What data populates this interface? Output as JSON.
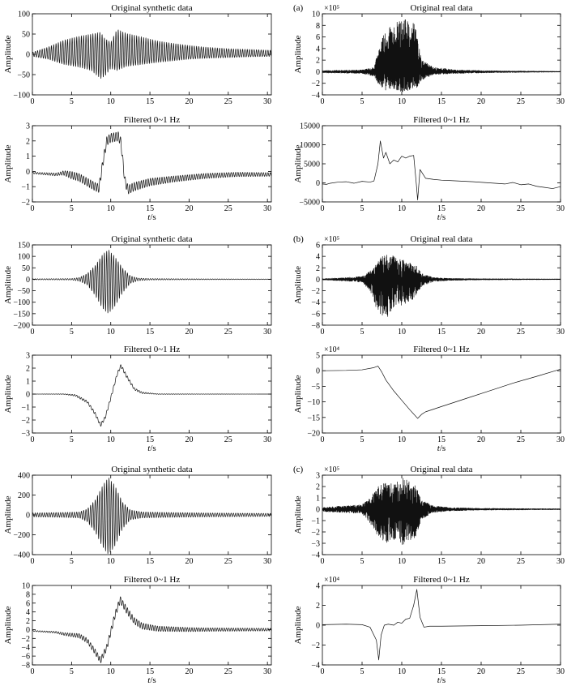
{
  "figure": {
    "panel_letters": [
      "(a)",
      "(b)",
      "(c)"
    ]
  },
  "chart_data": [
    {
      "id": "a-syn-orig",
      "type": "line",
      "title": "Original synthetic data",
      "xlabel": "",
      "ylabel": "Amplitude",
      "xlim": [
        0,
        30.5
      ],
      "ylim": [
        -100,
        100
      ],
      "yticks": [
        -100,
        -50,
        0,
        50,
        100
      ],
      "xticks": [
        0,
        5,
        10,
        15,
        20,
        25,
        30
      ],
      "exponent": "",
      "series": [
        {
          "x": [
            0,
            2,
            4,
            6,
            7.5,
            8.7,
            9.2,
            10,
            10.8,
            12,
            14,
            16,
            18,
            20,
            22,
            25,
            28,
            30.5
          ],
          "y_upper": [
            5,
            18,
            35,
            45,
            50,
            55,
            40,
            30,
            62,
            52,
            43,
            33,
            27,
            22,
            18,
            14,
            12,
            10
          ],
          "y_lower": [
            -5,
            -12,
            -25,
            -32,
            -40,
            -60,
            -55,
            -35,
            -40,
            -30,
            -25,
            -20,
            -16,
            -12,
            -10,
            -8,
            -6,
            -5
          ],
          "cycles_per_unit": 3.4
        }
      ]
    },
    {
      "id": "a-syn-filt",
      "type": "line",
      "title": "Filtered 0~1 Hz",
      "xlabel": "t/s",
      "ylabel": "Amplitude",
      "xlim": [
        0,
        30.5
      ],
      "ylim": [
        -2,
        3
      ],
      "yticks": [
        -2,
        -1,
        0,
        1,
        2,
        3
      ],
      "xticks": [
        0,
        5,
        10,
        15,
        20,
        25,
        30
      ],
      "exponent": "",
      "series": [
        {
          "x": [
            0,
            3,
            4,
            6,
            7,
            8,
            8.5,
            9,
            9.5,
            10,
            11,
            11.3,
            11.8,
            12.2,
            13,
            15,
            18,
            22,
            26,
            30.5
          ],
          "y": [
            -0.1,
            -0.2,
            -0.1,
            -0.4,
            -0.7,
            -1.0,
            -1.1,
            0.6,
            2.0,
            2.2,
            2.3,
            1.9,
            -0.6,
            -1.2,
            -1.0,
            -0.7,
            -0.5,
            -0.3,
            -0.2,
            -0.2
          ],
          "osc_x": [
            0,
            3.5,
            5,
            10,
            12,
            18,
            25,
            30.5
          ],
          "osc_amp": [
            0.05,
            0.1,
            0.25,
            0.3,
            0.3,
            0.2,
            0.15,
            0.12
          ],
          "cycles_per_unit": 3.4
        }
      ]
    },
    {
      "id": "b-syn-orig",
      "type": "line",
      "title": "Original synthetic data",
      "xlabel": "",
      "ylabel": "Amplitude",
      "xlim": [
        0,
        30.5
      ],
      "ylim": [
        -200,
        150
      ],
      "yticks": [
        -200,
        -150,
        -100,
        -50,
        0,
        50,
        100,
        150
      ],
      "xticks": [
        0,
        5,
        10,
        15,
        20,
        25,
        30
      ],
      "exponent": "",
      "series": [
        {
          "x": [
            0,
            5,
            6,
            7,
            8,
            9,
            9.7,
            10.5,
            11.5,
            12.5,
            13.5,
            15,
            20,
            30.5
          ],
          "y_upper": [
            2,
            3,
            8,
            25,
            60,
            110,
            130,
            100,
            50,
            15,
            5,
            3,
            2,
            1
          ],
          "y_lower": [
            -2,
            -3,
            -8,
            -25,
            -70,
            -130,
            -150,
            -120,
            -60,
            -18,
            -6,
            -3,
            -2,
            -1
          ],
          "cycles_per_unit": 3.4
        }
      ]
    },
    {
      "id": "b-syn-filt",
      "type": "line",
      "title": "Filtered 0~1 Hz",
      "xlabel": "t/s",
      "ylabel": "Amplitude",
      "xlim": [
        0,
        30.5
      ],
      "ylim": [
        -3,
        3
      ],
      "yticks": [
        -3,
        -2,
        -1,
        0,
        1,
        2,
        3
      ],
      "xticks": [
        0,
        5,
        10,
        15,
        20,
        25,
        30
      ],
      "exponent": "",
      "series": [
        {
          "x": [
            0,
            4,
            5.5,
            7,
            8,
            8.7,
            9.3,
            10,
            10.8,
            11.3,
            12,
            13,
            14,
            16,
            20,
            30.5
          ],
          "y": [
            0,
            0,
            -0.1,
            -0.6,
            -1.5,
            -2.4,
            -1.8,
            -0.3,
            1.5,
            2.2,
            1.4,
            0.4,
            0.1,
            0,
            0,
            0
          ],
          "osc_x": [
            0,
            4,
            6,
            9,
            12,
            14,
            16,
            30.5
          ],
          "osc_amp": [
            0,
            0.02,
            0.08,
            0.12,
            0.12,
            0.06,
            0.02,
            0
          ],
          "cycles_per_unit": 3.4
        }
      ]
    },
    {
      "id": "c-syn-orig",
      "type": "line",
      "title": "Original synthetic data",
      "xlabel": "",
      "ylabel": "Amplitude",
      "xlim": [
        0,
        30.5
      ],
      "ylim": [
        -400,
        400
      ],
      "yticks": [
        -400,
        -200,
        0,
        200,
        400
      ],
      "xticks": [
        0,
        5,
        10,
        15,
        20,
        25,
        30
      ],
      "exponent": "",
      "series": [
        {
          "x": [
            0,
            4,
            6,
            7,
            8,
            9,
            9.7,
            10.5,
            11.5,
            12.5,
            14,
            17,
            22,
            30.5
          ],
          "y_upper": [
            20,
            25,
            30,
            60,
            150,
            300,
            380,
            300,
            130,
            50,
            30,
            25,
            20,
            15
          ],
          "y_lower": [
            -20,
            -25,
            -30,
            -70,
            -170,
            -330,
            -400,
            -320,
            -140,
            -50,
            -30,
            -25,
            -20,
            -15
          ],
          "cycles_per_unit": 3.4
        }
      ]
    },
    {
      "id": "c-syn-filt",
      "type": "line",
      "title": "Filtered 0~1 Hz",
      "xlabel": "t/s",
      "ylabel": "Amplitude",
      "xlim": [
        0,
        30.5
      ],
      "ylim": [
        -8,
        10
      ],
      "yticks": [
        -8,
        -6,
        -4,
        -2,
        0,
        2,
        4,
        6,
        8,
        10
      ],
      "xticks": [
        0,
        5,
        10,
        15,
        20,
        25,
        30
      ],
      "exponent": "",
      "series": [
        {
          "x": [
            0,
            3,
            4,
            6,
            7,
            8,
            8.7,
            9.5,
            10.5,
            11.2,
            12,
            13,
            14,
            16,
            20,
            30.5
          ],
          "y": [
            -0.3,
            -0.6,
            -1.0,
            -1.4,
            -2.5,
            -5.0,
            -7.0,
            -4.0,
            3.0,
            6.8,
            4.5,
            2.0,
            0.8,
            0.2,
            0,
            0
          ],
          "osc_x": [
            0,
            3,
            6,
            9,
            12,
            16,
            22,
            30.5
          ],
          "osc_amp": [
            0.1,
            0.2,
            0.5,
            0.7,
            0.8,
            0.6,
            0.4,
            0.3
          ],
          "cycles_per_unit": 3.4
        }
      ]
    },
    {
      "id": "a-real-orig",
      "type": "line",
      "title": "Original real data",
      "xlabel": "",
      "ylabel": "Amplitude",
      "xlim": [
        0,
        30
      ],
      "ylim": [
        -4,
        10
      ],
      "yticks": [
        -4,
        -2,
        0,
        2,
        4,
        6,
        8,
        10
      ],
      "xticks": [
        0,
        5,
        10,
        15,
        20,
        25,
        30
      ],
      "exponent": "×10⁵",
      "series": [
        {
          "x": [
            0,
            5,
            6.5,
            7.2,
            8,
            9,
            10,
            11,
            11.8,
            12.5,
            14,
            17,
            22,
            30
          ],
          "y_upper": [
            0.2,
            0.3,
            0.8,
            4.5,
            7.5,
            8.2,
            9.2,
            8.8,
            8.0,
            2.0,
            0.8,
            0.3,
            0.15,
            0.05
          ],
          "y_lower": [
            -0.2,
            -0.3,
            -0.8,
            -2.5,
            -3.2,
            -3.0,
            -3.5,
            -3.2,
            -3.0,
            -1.5,
            -0.5,
            -0.3,
            -0.15,
            -0.05
          ],
          "noise": true,
          "rng_seed": 11
        }
      ]
    },
    {
      "id": "a-real-filt",
      "type": "line",
      "title": "Filtered 0~1 Hz",
      "xlabel": "t/s",
      "ylabel": "Amplitude",
      "xlim": [
        0,
        30
      ],
      "ylim": [
        -5000,
        15000
      ],
      "yticks": [
        -5000,
        0,
        5000,
        10000,
        15000
      ],
      "xticks": [
        0,
        5,
        10,
        15,
        20,
        25,
        30
      ],
      "exponent": "",
      "series": [
        {
          "x": [
            0,
            0.5,
            1,
            2,
            3,
            4,
            5,
            6,
            6.5,
            7,
            7.3,
            7.7,
            8,
            8.5,
            9,
            9.5,
            10,
            10.5,
            11,
            11.5,
            11.8,
            12,
            12.3,
            13,
            14,
            15,
            17,
            19,
            21,
            23,
            24,
            25,
            26,
            27,
            28,
            29,
            30
          ],
          "y": [
            -300,
            -400,
            -100,
            200,
            300,
            -100,
            400,
            200,
            500,
            5000,
            11000,
            6500,
            8000,
            5000,
            6000,
            5500,
            7000,
            6500,
            7000,
            7200,
            500,
            -4500,
            3500,
            1200,
            900,
            700,
            500,
            300,
            0,
            -300,
            100,
            -500,
            -300,
            -900,
            -1200,
            -1500,
            -1000
          ]
        }
      ]
    },
    {
      "id": "b-real-orig",
      "type": "line",
      "title": "Original real data",
      "xlabel": "",
      "ylabel": "Amplitude",
      "xlim": [
        0,
        30
      ],
      "ylim": [
        -8,
        6
      ],
      "yticks": [
        -8,
        -6,
        -4,
        -2,
        0,
        2,
        4,
        6
      ],
      "xticks": [
        0,
        5,
        10,
        15,
        20,
        25,
        30
      ],
      "exponent": "×10⁵",
      "series": [
        {
          "x": [
            0,
            3,
            5,
            6,
            7,
            8,
            9,
            10,
            11,
            11.8,
            12.5,
            14,
            16,
            20,
            30
          ],
          "y_upper": [
            0.1,
            0.3,
            0.5,
            1.5,
            3.5,
            4.8,
            4.0,
            3.5,
            3.0,
            2.5,
            1.0,
            0.3,
            0.15,
            0.1,
            0.05
          ],
          "y_lower": [
            -0.1,
            -0.3,
            -0.5,
            -2.0,
            -6.0,
            -7.0,
            -5.0,
            -4.5,
            -4.0,
            -3.0,
            -1.2,
            -0.4,
            -0.2,
            -0.1,
            -0.05
          ],
          "noise": true,
          "rng_seed": 23
        }
      ]
    },
    {
      "id": "b-real-filt",
      "type": "line",
      "title": "Filtered 0~1 Hz",
      "xlabel": "t/s",
      "ylabel": "Amplitude",
      "xlim": [
        0,
        30
      ],
      "ylim": [
        -20,
        5
      ],
      "yticks": [
        -20,
        -15,
        -10,
        -5,
        0,
        5
      ],
      "xticks": [
        0,
        5,
        10,
        15,
        20,
        25,
        30
      ],
      "exponent": "×10⁴",
      "series": [
        {
          "x": [
            0,
            3,
            5,
            6.5,
            7,
            7.5,
            8,
            9,
            10,
            11,
            12,
            12.5,
            13,
            15,
            18,
            21,
            24,
            27,
            30
          ],
          "y": [
            0,
            0.1,
            0.3,
            1.0,
            1.5,
            -0.5,
            -3.0,
            -6.5,
            -9.5,
            -12.5,
            -15.3,
            -14.0,
            -13.2,
            -11.5,
            -9.0,
            -6.5,
            -4.0,
            -1.8,
            0.5
          ]
        }
      ]
    },
    {
      "id": "c-real-orig",
      "type": "line",
      "title": "Original real data",
      "xlabel": "",
      "ylabel": "Amplitude",
      "xlim": [
        0,
        30
      ],
      "ylim": [
        -4,
        3
      ],
      "yticks": [
        -4,
        -3,
        -2,
        -1,
        0,
        1,
        2,
        3
      ],
      "xticks": [
        0,
        5,
        10,
        15,
        20,
        25,
        30
      ],
      "exponent": "×10⁵",
      "series": [
        {
          "x": [
            0,
            3,
            5,
            6,
            7,
            8,
            9,
            10,
            11,
            11.8,
            12.5,
            14,
            16,
            20,
            30
          ],
          "y_upper": [
            0.2,
            0.3,
            0.4,
            1.0,
            2.0,
            2.4,
            2.3,
            2.8,
            2.5,
            2.0,
            0.8,
            0.3,
            0.15,
            0.08,
            0.04
          ],
          "y_lower": [
            -0.2,
            -0.3,
            -0.4,
            -1.2,
            -2.4,
            -3.0,
            -2.8,
            -3.2,
            -2.8,
            -2.4,
            -0.9,
            -0.3,
            -0.15,
            -0.08,
            -0.04
          ],
          "noise": true,
          "rng_seed": 37
        }
      ]
    },
    {
      "id": "c-real-filt",
      "type": "line",
      "title": "Filtered 0~1 Hz",
      "xlabel": "t/s",
      "ylabel": "Amplitude",
      "xlim": [
        0,
        30
      ],
      "ylim": [
        -4,
        4
      ],
      "yticks": [
        -4,
        -2,
        0,
        2,
        4
      ],
      "xticks": [
        0,
        5,
        10,
        15,
        20,
        25,
        30
      ],
      "exponent": "×10⁴",
      "series": [
        {
          "x": [
            0,
            3,
            5,
            6,
            6.8,
            7.1,
            7.4,
            7.8,
            8.3,
            9,
            9.5,
            10,
            10.5,
            11,
            11.5,
            11.9,
            12.3,
            12.8,
            13.5,
            15,
            20,
            25,
            30
          ],
          "y": [
            0.05,
            0.1,
            0.05,
            -0.2,
            -1.5,
            -3.5,
            -1.0,
            0,
            0.1,
            0,
            0.3,
            0.2,
            0.6,
            0.7,
            2.0,
            3.6,
            0.8,
            -0.2,
            -0.1,
            -0.1,
            -0.05,
            0,
            0.1
          ]
        }
      ]
    }
  ]
}
